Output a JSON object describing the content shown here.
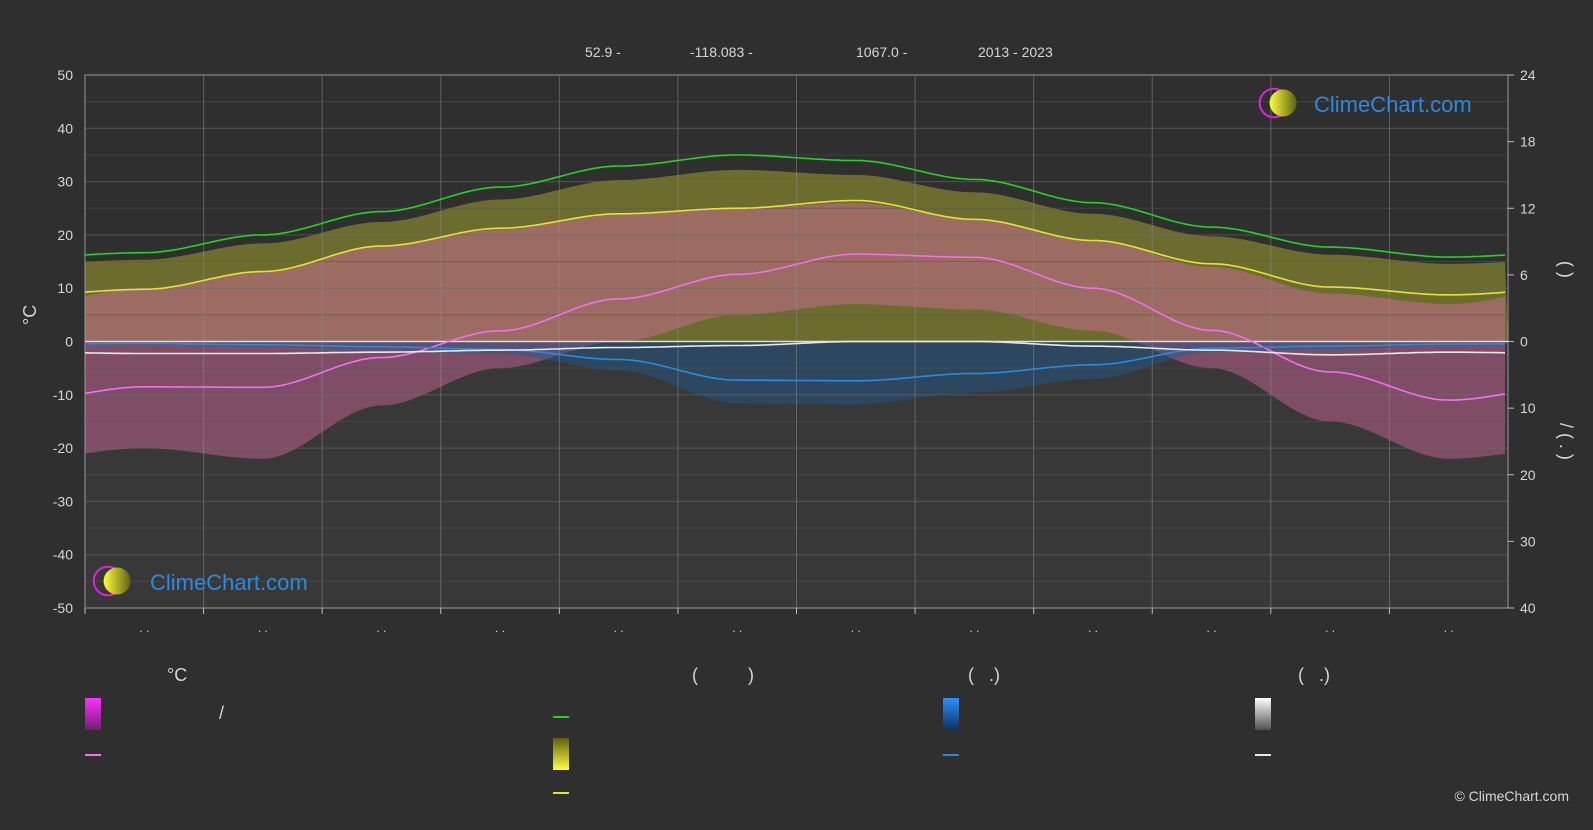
{
  "header": {
    "lat": "52.9 -",
    "lon": "-118.083 -",
    "elev": "1067.0 -",
    "years": "2013 - 2023"
  },
  "watermark": "ClimeChart.com",
  "copyright": "© ClimeChart.com",
  "legend": {
    "temperature_heading": "°C",
    "sun_heading": "(          )",
    "rain_heading": "(   .)",
    "snow_heading": "(   .)",
    "temp_range_slash": "/"
  },
  "colors": {
    "background": "#2f2f2f",
    "daylight": "#22d422",
    "sunshine": "#e4e432",
    "sunshine_fill": "#b8b830",
    "temp_mean": "#f070f0",
    "temp_fill": "#e040c0",
    "temp_fill_pink": "#d86aa0",
    "rain": "#2a8ae0",
    "snow": "#e8e8e8",
    "brand_blue": "#2a8ae0",
    "brand_magenta": "#e020e0"
  },
  "chart_data": {
    "type": "line",
    "month_labels": ". .",
    "left_axis": {
      "label": "°C",
      "ticks": [
        50,
        40,
        30,
        20,
        10,
        0,
        -10,
        -20,
        -30,
        -40,
        -50
      ],
      "ylim": [
        -50,
        50
      ]
    },
    "right_axis_top": {
      "ticks": [
        24,
        18,
        12,
        6,
        0
      ],
      "range": [
        0,
        24
      ],
      "label": "(    )"
    },
    "right_axis_bottom": {
      "ticks": [
        0,
        10,
        20,
        30,
        40
      ],
      "range": [
        0,
        40
      ],
      "label": "/    (   .   )"
    },
    "grid": true,
    "x": [
      0,
      1,
      2,
      3,
      4,
      5,
      6,
      7,
      8,
      9,
      10,
      11
    ],
    "series": [
      {
        "key": "daylight",
        "axis": "hours",
        "values": [
          8.0,
          9.6,
          11.7,
          13.9,
          15.8,
          16.8,
          16.3,
          14.6,
          12.5,
          10.3,
          8.5,
          7.6
        ]
      },
      {
        "key": "sunshine",
        "axis": "hours",
        "values": [
          4.7,
          6.3,
          8.6,
          10.2,
          11.5,
          12.0,
          12.7,
          11.0,
          9.1,
          7.0,
          4.9,
          4.2
        ]
      },
      {
        "key": "temp_mean",
        "axis": "celsius",
        "values": [
          -8.5,
          -8.6,
          -3.0,
          2.0,
          8.0,
          12.6,
          16.4,
          15.8,
          10.0,
          2.1,
          -5.7,
          -11.0
        ]
      },
      {
        "key": "rain",
        "axis": "mm",
        "values": [
          0.3,
          0.5,
          0.8,
          1.2,
          2.7,
          5.8,
          5.9,
          4.8,
          3.5,
          1.0,
          0.7,
          0.4
        ]
      },
      {
        "key": "snow",
        "axis": "mm",
        "values": [
          1.8,
          1.8,
          1.6,
          1.3,
          0.9,
          0.6,
          0.0,
          0.0,
          0.7,
          1.3,
          2.0,
          1.6
        ]
      }
    ],
    "temp_range_max": [
      10,
      13,
      18,
      21,
      24,
      25,
      26,
      23,
      19,
      14,
      9,
      7
    ],
    "temp_range_min": [
      -20,
      -22,
      -12,
      -5,
      0,
      5,
      7,
      6,
      2,
      -5,
      -15,
      -22
    ]
  }
}
